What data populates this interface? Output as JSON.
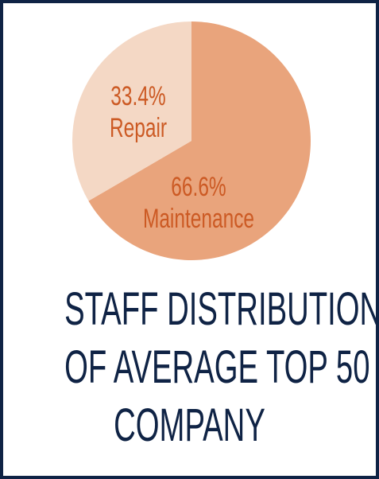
{
  "chart_data": {
    "type": "pie",
    "slices": [
      {
        "label": "Maintenance",
        "value": 66.6,
        "value_label": "66.6%",
        "color": "#e9a47c"
      },
      {
        "label": "Repair",
        "value": 33.4,
        "value_label": "33.4%",
        "color": "#f4d8c5"
      }
    ],
    "title_lines": [
      "STAFF DISTRIBUTION",
      "OF AVERAGE TOP 50",
      "COMPANY"
    ]
  },
  "colors": {
    "border": "#0f2345",
    "title": "#0f2345",
    "label": "#cc5a24"
  }
}
